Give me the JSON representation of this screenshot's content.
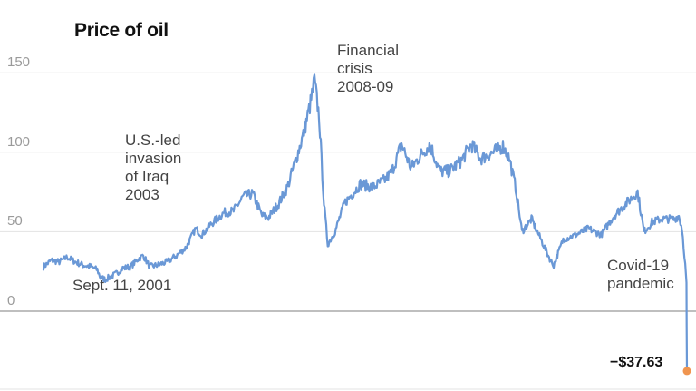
{
  "title": "Price of oil",
  "colors": {
    "line": "#6a98d6",
    "endpoint": "#f0954f",
    "grid": "#e3e3e3",
    "zero": "#999999"
  },
  "annotations": {
    "financial_crisis": [
      "Financial",
      "crisis",
      "2008-09"
    ],
    "iraq": [
      "U.S.-led",
      "invasion",
      "of Iraq",
      "2003"
    ],
    "sept11": "Sept. 11, 2001",
    "covid": [
      "Covid-19",
      "pandemic"
    ],
    "last_value": "−$37.63"
  },
  "chart_data": {
    "type": "line",
    "title": "Price of oil",
    "xlabel": "",
    "ylabel": "",
    "ylim": [
      -40,
      175
    ],
    "yticks": [
      0,
      50,
      100,
      150
    ],
    "grid": true,
    "series": [
      {
        "x": [
          2000.0,
          2000.25,
          2000.5,
          2000.75,
          2001.0,
          2001.25,
          2001.5,
          2001.7,
          2001.8,
          2001.95,
          2002.25,
          2002.5,
          2002.75,
          2003.0,
          2003.15,
          2003.35,
          2003.6,
          2003.9,
          2004.2,
          2004.5,
          2004.8,
          2005.0,
          2005.3,
          2005.7,
          2006.0,
          2006.3,
          2006.6,
          2006.9,
          2007.1,
          2007.4,
          2007.7,
          2007.9,
          2008.2,
          2008.45,
          2008.55,
          2008.7,
          2008.85,
          2008.97,
          2009.2,
          2009.5,
          2009.8,
          2010.0,
          2010.4,
          2010.8,
          2011.0,
          2011.3,
          2011.6,
          2011.9,
          2012.2,
          2012.5,
          2012.8,
          2013.2,
          2013.5,
          2013.8,
          2014.2,
          2014.5,
          2014.7,
          2014.9,
          2015.1,
          2015.4,
          2015.7,
          2016.0,
          2016.1,
          2016.4,
          2016.8,
          2017.2,
          2017.6,
          2018.0,
          2018.4,
          2018.75,
          2018.95,
          2019.2,
          2019.5,
          2019.9,
          2020.05,
          2020.15,
          2020.25,
          2020.29,
          2020.305
        ],
        "y": [
          28,
          32,
          31,
          34,
          31,
          29,
          28,
          26,
          21,
          20,
          23,
          27,
          28,
          33,
          35,
          28,
          29,
          31,
          35,
          40,
          52,
          48,
          55,
          62,
          63,
          72,
          74,
          60,
          59,
          67,
          78,
          91,
          111,
          133,
          145,
          122,
          68,
          42,
          50,
          68,
          75,
          80,
          78,
          83,
          88,
          105,
          90,
          98,
          105,
          88,
          88,
          95,
          105,
          96,
          100,
          104,
          96,
          78,
          50,
          58,
          45,
          32,
          29,
          45,
          48,
          52,
          48,
          60,
          68,
          75,
          50,
          56,
          58,
          58,
          60,
          52,
          30,
          18,
          -37.63
        ]
      }
    ]
  }
}
